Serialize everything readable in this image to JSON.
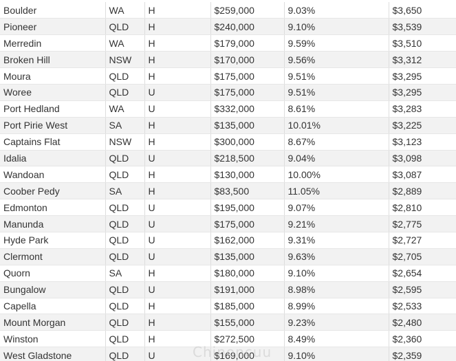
{
  "rows": [
    {
      "suburb": "Boulder",
      "state": "WA",
      "type": "H",
      "price": "$259,000",
      "yield": "9.03%",
      "income": "$3,650"
    },
    {
      "suburb": "Pioneer",
      "state": "QLD",
      "type": "H",
      "price": "$240,000",
      "yield": "9.10%",
      "income": "$3,539"
    },
    {
      "suburb": "Merredin",
      "state": "WA",
      "type": "H",
      "price": "$179,000",
      "yield": "9.59%",
      "income": "$3,510"
    },
    {
      "suburb": "Broken Hill",
      "state": "NSW",
      "type": "H",
      "price": "$170,000",
      "yield": "9.56%",
      "income": "$3,312"
    },
    {
      "suburb": "Moura",
      "state": "QLD",
      "type": "H",
      "price": "$175,000",
      "yield": "9.51%",
      "income": "$3,295"
    },
    {
      "suburb": "Woree",
      "state": "QLD",
      "type": "U",
      "price": "$175,000",
      "yield": "9.51%",
      "income": "$3,295"
    },
    {
      "suburb": "Port Hedland",
      "state": "WA",
      "type": "U",
      "price": "$332,000",
      "yield": "8.61%",
      "income": "$3,283"
    },
    {
      "suburb": "Port Pirie West",
      "state": "SA",
      "type": "H",
      "price": "$135,000",
      "yield": "10.01%",
      "income": "$3,225"
    },
    {
      "suburb": "Captains Flat",
      "state": "NSW",
      "type": "H",
      "price": "$300,000",
      "yield": "8.67%",
      "income": "$3,123"
    },
    {
      "suburb": "Idalia",
      "state": "QLD",
      "type": "U",
      "price": "$218,500",
      "yield": "9.04%",
      "income": "$3,098"
    },
    {
      "suburb": "Wandoan",
      "state": "QLD",
      "type": "H",
      "price": "$130,000",
      "yield": "10.00%",
      "income": "$3,087"
    },
    {
      "suburb": "Coober Pedy",
      "state": "SA",
      "type": "H",
      "price": "$83,500",
      "yield": "11.05%",
      "income": "$2,889"
    },
    {
      "suburb": "Edmonton",
      "state": "QLD",
      "type": "U",
      "price": "$195,000",
      "yield": "9.07%",
      "income": "$2,810"
    },
    {
      "suburb": "Manunda",
      "state": "QLD",
      "type": "U",
      "price": "$175,000",
      "yield": "9.21%",
      "income": "$2,775"
    },
    {
      "suburb": "Hyde Park",
      "state": "QLD",
      "type": "U",
      "price": "$162,000",
      "yield": "9.31%",
      "income": "$2,727"
    },
    {
      "suburb": "Clermont",
      "state": "QLD",
      "type": "U",
      "price": "$135,000",
      "yield": "9.63%",
      "income": "$2,705"
    },
    {
      "suburb": "Quorn",
      "state": "SA",
      "type": "H",
      "price": "$180,000",
      "yield": "9.10%",
      "income": "$2,654"
    },
    {
      "suburb": "Bungalow",
      "state": "QLD",
      "type": "U",
      "price": "$191,000",
      "yield": "8.98%",
      "income": "$2,595"
    },
    {
      "suburb": "Capella",
      "state": "QLD",
      "type": "H",
      "price": "$185,000",
      "yield": "8.99%",
      "income": "$2,533"
    },
    {
      "suburb": "Mount Morgan",
      "state": "QLD",
      "type": "H",
      "price": "$155,000",
      "yield": "9.23%",
      "income": "$2,480"
    },
    {
      "suburb": "Winston",
      "state": "QLD",
      "type": "H",
      "price": "$272,500",
      "yield": "8.49%",
      "income": "$2,360"
    },
    {
      "suburb": "West Gladstone",
      "state": "QLD",
      "type": "U",
      "price": "$169,000",
      "yield": "9.10%",
      "income": "$2,359"
    }
  ],
  "watermark": {
    "text": "Chinoncuu"
  }
}
